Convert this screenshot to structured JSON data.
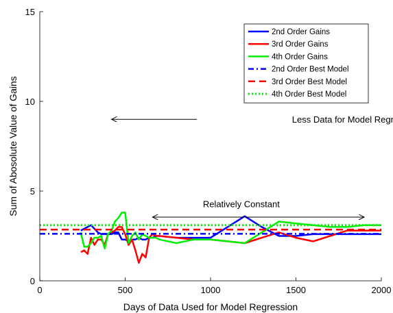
{
  "chart_data": {
    "type": "line",
    "xlabel": "Days of Data Used for Model Regression",
    "ylabel": "Sum of Abosolute Value of Gains",
    "xlim": [
      0,
      2000
    ],
    "ylim": [
      0,
      15
    ],
    "xticks": [
      0,
      500,
      1000,
      1500,
      2000
    ],
    "yticks": [
      0,
      5,
      10,
      15
    ],
    "grid": false,
    "legend_position": "top-right",
    "series": [
      {
        "name": "2nd Order Gains",
        "color": "#0000ff",
        "style": "solid",
        "x": [
          240,
          260,
          280,
          300,
          320,
          340,
          360,
          380,
          400,
          420,
          440,
          460,
          480,
          500,
          520,
          540,
          560,
          580,
          600,
          620,
          640,
          660,
          680,
          700,
          800,
          900,
          1000,
          1100,
          1200,
          1300,
          1400,
          1500,
          1600,
          1700,
          1800,
          1900,
          2000
        ],
        "y": [
          2.8,
          2.9,
          3.0,
          3.1,
          2.9,
          2.7,
          2.6,
          2.6,
          2.6,
          2.6,
          2.7,
          2.7,
          2.3,
          2.3,
          2.2,
          2.3,
          2.3,
          2.4,
          2.3,
          2.3,
          2.4,
          2.4,
          2.5,
          2.5,
          2.4,
          2.4,
          2.4,
          3.0,
          3.6,
          3.0,
          2.5,
          2.5,
          2.6,
          2.6,
          2.6,
          2.6,
          2.6
        ]
      },
      {
        "name": "3rd Order Gains",
        "color": "#ff0000",
        "style": "solid",
        "x": [
          240,
          260,
          280,
          300,
          320,
          340,
          360,
          380,
          400,
          420,
          440,
          460,
          480,
          500,
          520,
          540,
          560,
          580,
          600,
          620,
          640,
          660,
          680,
          700,
          800,
          900,
          1000,
          1100,
          1200,
          1300,
          1400,
          1500,
          1600,
          1700,
          1800,
          1900,
          2000
        ],
        "y": [
          1.6,
          1.7,
          1.5,
          2.4,
          2.0,
          2.3,
          2.3,
          2.0,
          2.6,
          2.7,
          2.8,
          3.0,
          3.0,
          2.6,
          2.0,
          2.3,
          1.7,
          1.0,
          1.5,
          1.3,
          2.4,
          2.6,
          2.5,
          2.5,
          2.4,
          2.3,
          2.3,
          2.2,
          2.1,
          2.4,
          2.7,
          2.4,
          2.2,
          2.5,
          2.8,
          2.8,
          2.8
        ]
      },
      {
        "name": "4th Order Gains",
        "color": "#00ee00",
        "style": "solid",
        "x": [
          240,
          260,
          280,
          300,
          320,
          340,
          360,
          380,
          400,
          420,
          440,
          460,
          480,
          500,
          520,
          540,
          560,
          580,
          600,
          620,
          640,
          660,
          680,
          700,
          800,
          900,
          1000,
          1100,
          1200,
          1300,
          1400,
          1500,
          1600,
          1700,
          1800,
          1900,
          2000
        ],
        "y": [
          2.7,
          1.9,
          1.9,
          2.1,
          2.4,
          2.4,
          2.5,
          1.8,
          2.6,
          2.8,
          3.3,
          3.5,
          3.8,
          3.8,
          2.1,
          2.5,
          2.7,
          2.3,
          2.6,
          2.5,
          2.4,
          2.4,
          2.4,
          2.3,
          2.1,
          2.3,
          2.3,
          2.2,
          2.1,
          2.7,
          3.3,
          3.2,
          3.1,
          3.0,
          3.0,
          3.1,
          3.1
        ]
      },
      {
        "name": "2nd Order Best Model",
        "color": "#0000ff",
        "style": "dashdot",
        "x": [
          0,
          2000
        ],
        "y": [
          2.62,
          2.62
        ]
      },
      {
        "name": "3rd Order Best Model",
        "color": "#ff0000",
        "style": "dashed",
        "x": [
          0,
          2000
        ],
        "y": [
          2.85,
          2.85
        ]
      },
      {
        "name": "4th Order Best Model",
        "color": "#00ee00",
        "style": "dotted",
        "x": [
          0,
          2000
        ],
        "y": [
          3.1,
          3.1
        ]
      }
    ],
    "annotations": [
      {
        "text": "Less Data for Model Regression",
        "arrow": "left",
        "text_x": 1850,
        "text_y": 9.0,
        "arrow_from_x": 920,
        "arrow_to_x": 420,
        "arrow_y": 9.0
      },
      {
        "text": "Relatively Constant",
        "arrow": "both",
        "text_x": 1180,
        "text_y": 4.3,
        "arrow_from_x": 660,
        "arrow_to_x": 1900,
        "arrow_y": 3.55
      }
    ]
  }
}
